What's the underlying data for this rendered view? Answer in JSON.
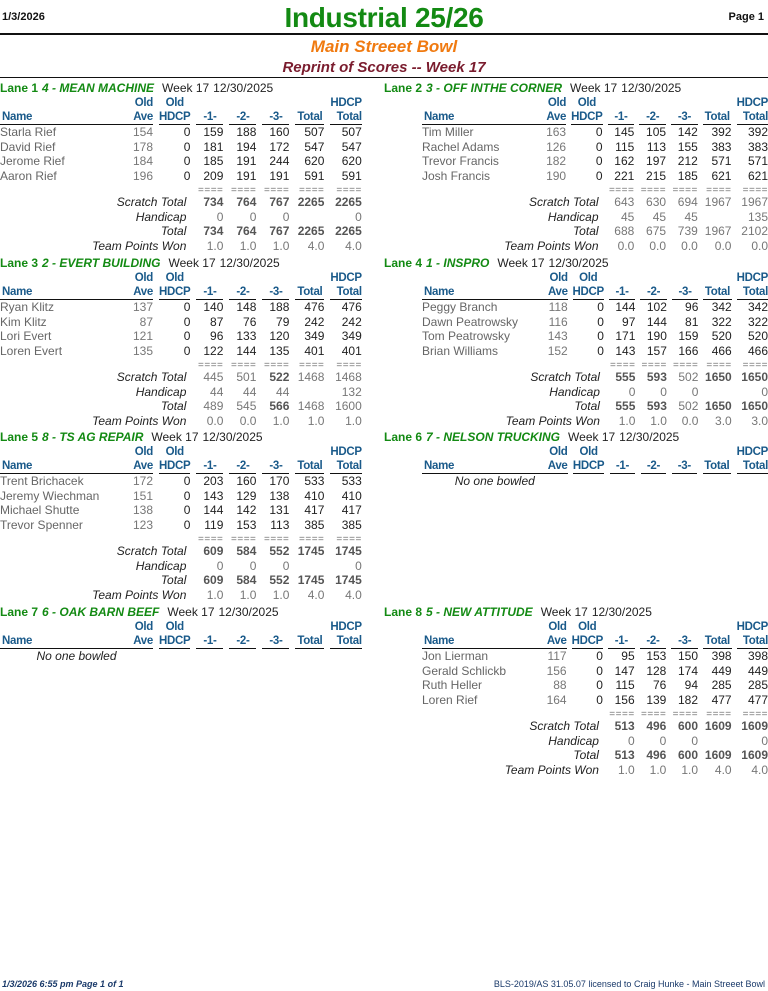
{
  "header": {
    "date": "1/3/2026",
    "title": "Industrial 25/26",
    "page": "Page 1",
    "subtitle": "Main Streeet Bowl",
    "report": "Reprint of Scores -- Week 17"
  },
  "columns": {
    "old": "Old",
    "name": "Name",
    "ave": "Ave",
    "hdcp": "HDCP",
    "g1": "-1-",
    "g2": "-2-",
    "g3": "-3-",
    "total": "Total",
    "hdcp_top": "HDCP",
    "hdcp_total": "Total"
  },
  "labels": {
    "scratch_total": "Scratch Total",
    "handicap": "Handicap",
    "total": "Total",
    "team_points": "Team Points Won",
    "separator": "====",
    "no_one": "No one bowled"
  },
  "lanes": [
    {
      "lane": "Lane 1",
      "team": "4 - MEAN MACHINE",
      "week": "Week 17",
      "date": "12/30/2025",
      "bowlers": [
        {
          "name": "Starla Rief",
          "ave": "154",
          "hdcp": "0",
          "g1": "159",
          "g2": "188",
          "g3": "160",
          "total": "507",
          "hdcp_total": "507"
        },
        {
          "name": "David Rief",
          "ave": "178",
          "hdcp": "0",
          "g1": "181",
          "g2": "194",
          "g3": "172",
          "total": "547",
          "hdcp_total": "547"
        },
        {
          "name": "Jerome Rief",
          "ave": "184",
          "hdcp": "0",
          "g1": "185",
          "g2": "191",
          "g3": "244",
          "total": "620",
          "hdcp_total": "620"
        },
        {
          "name": "Aaron Rief",
          "ave": "196",
          "hdcp": "0",
          "g1": "209",
          "g2": "191",
          "g3": "191",
          "total": "591",
          "hdcp_total": "591"
        }
      ],
      "scratch": {
        "g1": "734",
        "g2": "764",
        "g3": "767",
        "total": "2265",
        "hdcp_total": "2265"
      },
      "handicap": {
        "g1": "0",
        "g2": "0",
        "g3": "0",
        "total": "",
        "hdcp_total": "0"
      },
      "total": {
        "g1": "734",
        "g2": "764",
        "g3": "767",
        "total": "2265",
        "hdcp_total": "2265"
      },
      "points": {
        "g1": "1.0",
        "g2": "1.0",
        "g3": "1.0",
        "total": "4.0",
        "hdcp_total": "4.0"
      }
    },
    {
      "lane": "Lane 2",
      "team": "3 - OFF INTHE CORNER",
      "week": "Week 17",
      "date": "12/30/2025",
      "bowlers": [
        {
          "name": "Tim Miller",
          "ave": "163",
          "hdcp": "0",
          "g1": "145",
          "g2": "105",
          "g3": "142",
          "total": "392",
          "hdcp_total": "392"
        },
        {
          "name": "Rachel Adams",
          "ave": "126",
          "hdcp": "0",
          "g1": "115",
          "g2": "113",
          "g3": "155",
          "total": "383",
          "hdcp_total": "383"
        },
        {
          "name": "Trevor Francis",
          "ave": "182",
          "hdcp": "0",
          "g1": "162",
          "g2": "197",
          "g3": "212",
          "total": "571",
          "hdcp_total": "571"
        },
        {
          "name": "Josh Francis",
          "ave": "190",
          "hdcp": "0",
          "g1": "221",
          "g2": "215",
          "g3": "185",
          "total": "621",
          "hdcp_total": "621"
        }
      ],
      "scratch": {
        "g1": "643",
        "g2": "630",
        "g3": "694",
        "total": "1967",
        "hdcp_total": "1967"
      },
      "handicap": {
        "g1": "45",
        "g2": "45",
        "g3": "45",
        "total": "",
        "hdcp_total": "135"
      },
      "total": {
        "g1": "688",
        "g2": "675",
        "g3": "739",
        "total": "1967",
        "hdcp_total": "2102"
      },
      "points": {
        "g1": "0.0",
        "g2": "0.0",
        "g3": "0.0",
        "total": "0.0",
        "hdcp_total": "0.0"
      }
    },
    {
      "lane": "Lane 3",
      "team": "2 - EVERT BUILDING",
      "week": "Week 17",
      "date": "12/30/2025",
      "bowlers": [
        {
          "name": "Ryan Klitz",
          "ave": "137",
          "hdcp": "0",
          "g1": "140",
          "g2": "148",
          "g3": "188",
          "total": "476",
          "hdcp_total": "476"
        },
        {
          "name": "Kim Klitz",
          "ave": "87",
          "hdcp": "0",
          "g1": "87",
          "g2": "76",
          "g3": "79",
          "total": "242",
          "hdcp_total": "242"
        },
        {
          "name": "Lori Evert",
          "ave": "121",
          "hdcp": "0",
          "g1": "96",
          "g2": "133",
          "g3": "120",
          "total": "349",
          "hdcp_total": "349"
        },
        {
          "name": "Loren Evert",
          "ave": "135",
          "hdcp": "0",
          "g1": "122",
          "g2": "144",
          "g3": "135",
          "total": "401",
          "hdcp_total": "401"
        }
      ],
      "scratch": {
        "g1": "445",
        "g2": "501",
        "g3": "522",
        "total": "1468",
        "hdcp_total": "1468"
      },
      "handicap": {
        "g1": "44",
        "g2": "44",
        "g3": "44",
        "total": "",
        "hdcp_total": "132"
      },
      "total": {
        "g1": "489",
        "g2": "545",
        "g3": "566",
        "total": "1468",
        "hdcp_total": "1600"
      },
      "points": {
        "g1": "0.0",
        "g2": "0.0",
        "g3": "1.0",
        "total": "1.0",
        "hdcp_total": "1.0"
      }
    },
    {
      "lane": "Lane 4",
      "team": "1 - INSPRO",
      "week": "Week 17",
      "date": "12/30/2025",
      "bowlers": [
        {
          "name": "Peggy Branch",
          "ave": "118",
          "hdcp": "0",
          "g1": "144",
          "g2": "102",
          "g3": "96",
          "total": "342",
          "hdcp_total": "342"
        },
        {
          "name": "Dawn Peatrowsky",
          "ave": "116",
          "hdcp": "0",
          "g1": "97",
          "g2": "144",
          "g3": "81",
          "total": "322",
          "hdcp_total": "322"
        },
        {
          "name": "Tom Peatrowsky",
          "ave": "143",
          "hdcp": "0",
          "g1": "171",
          "g2": "190",
          "g3": "159",
          "total": "520",
          "hdcp_total": "520"
        },
        {
          "name": "Brian Williams",
          "ave": "152",
          "hdcp": "0",
          "g1": "143",
          "g2": "157",
          "g3": "166",
          "total": "466",
          "hdcp_total": "466"
        }
      ],
      "scratch": {
        "g1": "555",
        "g2": "593",
        "g3": "502",
        "total": "1650",
        "hdcp_total": "1650"
      },
      "handicap": {
        "g1": "0",
        "g2": "0",
        "g3": "0",
        "total": "",
        "hdcp_total": "0"
      },
      "total": {
        "g1": "555",
        "g2": "593",
        "g3": "502",
        "total": "1650",
        "hdcp_total": "1650"
      },
      "points": {
        "g1": "1.0",
        "g2": "1.0",
        "g3": "0.0",
        "total": "3.0",
        "hdcp_total": "3.0"
      }
    },
    {
      "lane": "Lane 5",
      "team": "8 - TS AG REPAIR",
      "week": "Week 17",
      "date": "12/30/2025",
      "bowlers": [
        {
          "name": "Trent Brichacek",
          "ave": "172",
          "hdcp": "0",
          "g1": "203",
          "g2": "160",
          "g3": "170",
          "total": "533",
          "hdcp_total": "533"
        },
        {
          "name": "Jeremy Wiechman",
          "ave": "151",
          "hdcp": "0",
          "g1": "143",
          "g2": "129",
          "g3": "138",
          "total": "410",
          "hdcp_total": "410"
        },
        {
          "name": "Michael Shutte",
          "ave": "138",
          "hdcp": "0",
          "g1": "144",
          "g2": "142",
          "g3": "131",
          "total": "417",
          "hdcp_total": "417"
        },
        {
          "name": "Trevor Spenner",
          "ave": "123",
          "hdcp": "0",
          "g1": "119",
          "g2": "153",
          "g3": "113",
          "total": "385",
          "hdcp_total": "385"
        }
      ],
      "scratch": {
        "g1": "609",
        "g2": "584",
        "g3": "552",
        "total": "1745",
        "hdcp_total": "1745"
      },
      "handicap": {
        "g1": "0",
        "g2": "0",
        "g3": "0",
        "total": "",
        "hdcp_total": "0"
      },
      "total": {
        "g1": "609",
        "g2": "584",
        "g3": "552",
        "total": "1745",
        "hdcp_total": "1745"
      },
      "points": {
        "g1": "1.0",
        "g2": "1.0",
        "g3": "1.0",
        "total": "4.0",
        "hdcp_total": "4.0"
      }
    },
    {
      "lane": "Lane 6",
      "team": "7 - NELSON TRUCKING",
      "week": "Week 17",
      "date": "12/30/2025",
      "bowlers": []
    },
    {
      "lane": "Lane 7",
      "team": "6 - OAK BARN BEEF",
      "week": "Week 17",
      "date": "12/30/2025",
      "bowlers": []
    },
    {
      "lane": "Lane 8",
      "team": "5 - NEW ATTITUDE",
      "week": "Week 17",
      "date": "12/30/2025",
      "bowlers": [
        {
          "name": "Jon Lierman",
          "ave": "117",
          "hdcp": "0",
          "g1": "95",
          "g2": "153",
          "g3": "150",
          "total": "398",
          "hdcp_total": "398"
        },
        {
          "name": "Gerald Schlickb",
          "ave": "156",
          "hdcp": "0",
          "g1": "147",
          "g2": "128",
          "g3": "174",
          "total": "449",
          "hdcp_total": "449"
        },
        {
          "name": "Ruth Heller",
          "ave": "88",
          "hdcp": "0",
          "g1": "115",
          "g2": "76",
          "g3": "94",
          "total": "285",
          "hdcp_total": "285"
        },
        {
          "name": "Loren Rief",
          "ave": "164",
          "hdcp": "0",
          "g1": "156",
          "g2": "139",
          "g3": "182",
          "total": "477",
          "hdcp_total": "477"
        }
      ],
      "scratch": {
        "g1": "513",
        "g2": "496",
        "g3": "600",
        "total": "1609",
        "hdcp_total": "1609"
      },
      "handicap": {
        "g1": "0",
        "g2": "0",
        "g3": "0",
        "total": "",
        "hdcp_total": "0"
      },
      "total": {
        "g1": "513",
        "g2": "496",
        "g3": "600",
        "total": "1609",
        "hdcp_total": "1609"
      },
      "points": {
        "g1": "1.0",
        "g2": "1.0",
        "g3": "1.0",
        "total": "4.0",
        "hdcp_total": "4.0"
      }
    }
  ],
  "footer": {
    "left": "1/3/2026  6:55 pm  Page 1 of 1",
    "right": "BLS-2019/AS 31.05.07 licensed to Craig Hunke - Main Streeet Bowl"
  },
  "colors": {
    "title_green": "#138a13",
    "subtitle_orange": "#f07a10",
    "report_maroon": "#7a1c2e",
    "header_blue": "#1a5a8a"
  }
}
